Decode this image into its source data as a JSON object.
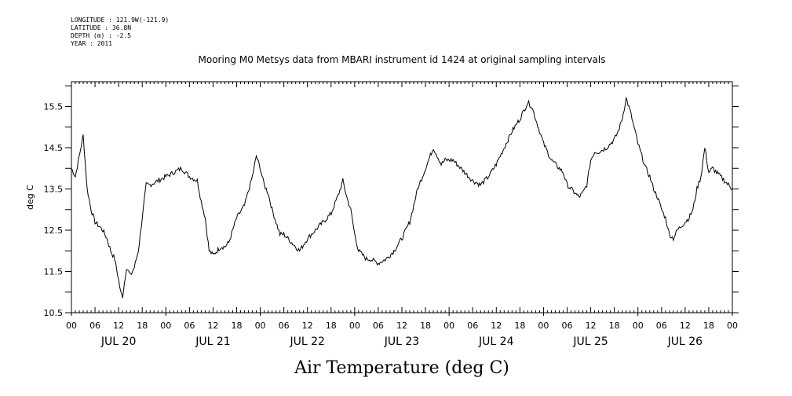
{
  "header": {
    "longitude": "LONGITUDE : 121.9W(-121.9)",
    "latitude": "LATITUDE : 36.8N",
    "depth": "DEPTH (m) : -2.5",
    "year": "YEAR : 2011"
  },
  "chart_data": {
    "type": "line",
    "title": "Mooring M0 Metsys data from MBARI instrument id 1424 at original sampling intervals",
    "xlabel": "Air Temperature (deg C)",
    "ylabel": "deg C",
    "ylim": [
      10.5,
      16.1
    ],
    "yticks": [
      10.5,
      11.5,
      12.5,
      13.5,
      14.5,
      15.5
    ],
    "ytick_labels": [
      "10.5",
      "11.5",
      "12.5",
      "13.5",
      "14.5",
      "15.5"
    ],
    "xlim_hours": [
      0,
      168
    ],
    "hour_ticks": [
      "00",
      "06",
      "12",
      "18",
      "00",
      "06",
      "12",
      "18",
      "00",
      "06",
      "12",
      "18",
      "00",
      "06",
      "12",
      "18",
      "00",
      "06",
      "12",
      "18",
      "00",
      "06",
      "12",
      "18",
      "00",
      "06",
      "12",
      "18",
      "00"
    ],
    "date_labels": [
      "JUL 20",
      "JUL 21",
      "JUL 22",
      "JUL 23",
      "JUL 24",
      "JUL 25",
      "JUL 26"
    ],
    "grid": false,
    "line_color": "#000000",
    "series": [
      {
        "x": [
          0,
          1,
          2,
          3,
          4,
          5,
          6,
          7,
          8,
          9,
          10,
          11,
          12,
          12.5,
          13,
          14,
          15,
          16,
          17,
          18,
          19,
          20,
          22,
          24,
          26,
          28,
          30,
          32,
          33,
          34,
          35,
          36,
          37,
          38,
          39,
          40,
          42,
          44,
          46,
          47,
          48,
          49,
          50,
          51,
          52,
          53,
          54,
          56,
          58,
          60,
          62,
          64,
          66,
          68,
          69,
          70,
          71,
          72,
          73,
          74,
          75,
          76,
          78,
          80,
          82,
          84,
          86,
          88,
          90,
          92,
          93,
          94,
          95,
          96,
          97,
          98,
          99,
          100,
          101,
          102,
          104,
          106,
          108,
          110,
          112,
          114,
          115,
          116,
          117,
          118,
          119,
          120,
          121,
          122,
          123,
          124,
          125,
          126,
          127,
          128,
          129,
          130,
          131,
          132,
          133,
          134,
          136,
          138,
          139,
          140,
          141,
          142,
          143,
          144,
          145,
          146,
          147,
          148,
          149,
          150,
          151,
          152,
          153,
          154,
          155,
          156,
          157,
          158,
          159,
          160,
          161,
          162,
          163,
          164,
          165,
          166,
          167,
          168
        ],
        "y": [
          14.0,
          13.8,
          14.3,
          14.8,
          13.5,
          13.0,
          12.7,
          12.6,
          12.5,
          12.3,
          12.0,
          11.8,
          11.3,
          11.0,
          10.9,
          11.6,
          11.4,
          11.6,
          12.0,
          12.8,
          13.6,
          13.6,
          13.7,
          13.8,
          13.9,
          14.0,
          13.8,
          13.7,
          13.2,
          12.8,
          12.0,
          11.9,
          12.0,
          12.1,
          12.1,
          12.2,
          12.8,
          13.1,
          13.8,
          14.3,
          14.0,
          13.6,
          13.4,
          13.0,
          12.7,
          12.4,
          12.4,
          12.2,
          12.0,
          12.3,
          12.5,
          12.7,
          12.9,
          13.4,
          13.7,
          13.3,
          13.0,
          12.4,
          12.0,
          11.9,
          11.8,
          11.8,
          11.7,
          11.8,
          12.0,
          12.3,
          12.7,
          13.5,
          14.0,
          14.5,
          14.3,
          14.1,
          14.2,
          14.2,
          14.2,
          14.1,
          14.0,
          13.9,
          13.8,
          13.7,
          13.6,
          13.8,
          14.1,
          14.5,
          14.9,
          15.2,
          15.4,
          15.6,
          15.5,
          15.2,
          14.9,
          14.6,
          14.4,
          14.2,
          14.1,
          14.0,
          13.9,
          13.6,
          13.5,
          13.4,
          13.3,
          13.4,
          13.6,
          14.2,
          14.4,
          14.4,
          14.5,
          14.7,
          14.9,
          15.2,
          15.7,
          15.4,
          15.0,
          14.6,
          14.3,
          14.0,
          13.8,
          13.5,
          13.3,
          13.0,
          12.8,
          12.4,
          12.3,
          12.5,
          12.6,
          12.7,
          12.8,
          13.0,
          13.5,
          13.8,
          14.5,
          13.9,
          14.0,
          13.9,
          13.8,
          13.7,
          13.6,
          13.5
        ]
      }
    ]
  }
}
